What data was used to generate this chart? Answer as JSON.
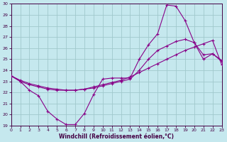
{
  "xlabel": "Windchill (Refroidissement éolien,°C)",
  "bg_color": "#c5e8ee",
  "line_color": "#880088",
  "grid_color": "#a0c8cc",
  "xlim": [
    0,
    23
  ],
  "ylim": [
    19,
    30
  ],
  "xticks": [
    0,
    1,
    2,
    3,
    4,
    5,
    6,
    7,
    8,
    9,
    10,
    11,
    12,
    13,
    14,
    15,
    16,
    17,
    18,
    19,
    20,
    21,
    22,
    23
  ],
  "yticks": [
    19,
    20,
    21,
    22,
    23,
    24,
    25,
    26,
    27,
    28,
    29,
    30
  ],
  "line1_x": [
    0,
    1,
    2,
    3,
    4,
    5,
    6,
    7,
    8,
    9,
    10,
    11,
    12,
    13,
    14,
    15,
    16,
    17,
    18,
    19,
    20,
    21,
    22,
    23
  ],
  "line1_y": [
    23.5,
    23.0,
    22.2,
    21.7,
    20.3,
    19.6,
    19.1,
    19.1,
    20.1,
    21.8,
    23.2,
    23.3,
    23.3,
    23.3,
    25.0,
    26.3,
    27.3,
    29.9,
    29.8,
    28.5,
    26.5,
    25.0,
    25.5,
    24.8
  ],
  "line2_x": [
    0,
    1,
    2,
    3,
    4,
    5,
    6,
    7,
    8,
    9,
    10,
    11,
    12,
    13,
    14,
    15,
    16,
    17,
    18,
    19,
    20,
    21,
    22,
    23
  ],
  "line2_y": [
    23.5,
    23.0,
    22.7,
    22.5,
    22.3,
    22.2,
    22.2,
    22.2,
    22.3,
    22.4,
    22.6,
    22.8,
    23.0,
    23.2,
    24.0,
    25.0,
    25.8,
    26.2,
    26.6,
    26.8,
    26.5,
    25.4,
    25.5,
    24.9
  ],
  "line3_x": [
    0,
    1,
    2,
    3,
    4,
    5,
    6,
    7,
    8,
    9,
    10,
    11,
    12,
    13,
    14,
    15,
    16,
    17,
    18,
    19,
    20,
    21,
    22,
    23
  ],
  "line3_y": [
    23.5,
    23.1,
    22.8,
    22.6,
    22.4,
    22.3,
    22.2,
    22.2,
    22.3,
    22.5,
    22.7,
    22.9,
    23.1,
    23.4,
    23.8,
    24.2,
    24.6,
    25.0,
    25.4,
    25.8,
    26.1,
    26.4,
    26.7,
    24.5
  ]
}
